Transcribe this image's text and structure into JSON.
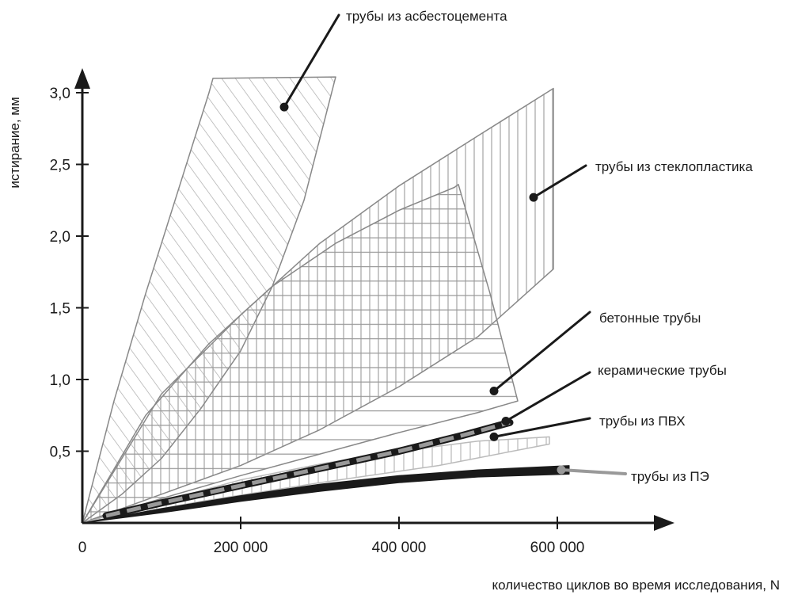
{
  "chart_data": {
    "type": "area",
    "title": "",
    "xlabel": "количество циклов во время исследования, N",
    "ylabel": "истирание, мм",
    "xlim": [
      0,
      740000
    ],
    "ylim": [
      0,
      3.3
    ],
    "x_ticks": [
      0,
      200000,
      400000,
      600000
    ],
    "x_tick_labels": [
      "0",
      "200 000",
      "400 000",
      "600 000"
    ],
    "y_ticks": [
      0.5,
      1.0,
      1.5,
      2.0,
      2.5,
      3.0
    ],
    "y_tick_labels": [
      "0,5",
      "1,0",
      "1,5",
      "2,0",
      "2,5",
      "3,0"
    ],
    "grid": false,
    "legend": "callouts",
    "series": [
      {
        "name": "трубы из асбестоцемента",
        "fill": "diagonal-hatch",
        "upper": [
          [
            0,
            0
          ],
          [
            40000,
            0.85
          ],
          [
            80000,
            1.6
          ],
          [
            120000,
            2.3
          ],
          [
            160000,
            3.0
          ],
          [
            165000,
            3.1
          ]
        ],
        "top": [
          [
            165000,
            3.1
          ],
          [
            320000,
            3.11
          ]
        ],
        "lower": [
          [
            0,
            0
          ],
          [
            50000,
            0.2
          ],
          [
            100000,
            0.45
          ],
          [
            150000,
            0.8
          ],
          [
            200000,
            1.2
          ],
          [
            240000,
            1.65
          ],
          [
            280000,
            2.25
          ],
          [
            320000,
            3.11
          ]
        ],
        "label_point": [
          255000,
          2.9
        ]
      },
      {
        "name": "трубы из стеклопластика",
        "fill": "vertical-hatch",
        "upper": [
          [
            0,
            0
          ],
          [
            50000,
            0.45
          ],
          [
            100000,
            0.9
          ],
          [
            200000,
            1.45
          ],
          [
            300000,
            1.95
          ],
          [
            400000,
            2.35
          ],
          [
            500000,
            2.7
          ],
          [
            595000,
            3.03
          ]
        ],
        "right": [
          [
            595000,
            3.03
          ],
          [
            595000,
            1.77
          ]
        ],
        "lower": [
          [
            0,
            0
          ],
          [
            100000,
            0.2
          ],
          [
            200000,
            0.4
          ],
          [
            300000,
            0.65
          ],
          [
            400000,
            0.95
          ],
          [
            500000,
            1.3
          ],
          [
            595000,
            1.77
          ]
        ],
        "label_point": [
          570000,
          2.27
        ]
      },
      {
        "name": "бетонные трубы",
        "fill": "horizontal-hatch",
        "upper": [
          [
            0,
            0
          ],
          [
            80000,
            0.75
          ],
          [
            160000,
            1.25
          ],
          [
            240000,
            1.65
          ],
          [
            320000,
            1.95
          ],
          [
            400000,
            2.18
          ],
          [
            470000,
            2.34
          ],
          [
            475000,
            2.36
          ]
        ],
        "right": [
          [
            475000,
            2.36
          ],
          [
            515000,
            1.6
          ],
          [
            550000,
            0.85
          ]
        ],
        "lower": [
          [
            0,
            0
          ],
          [
            100000,
            0.17
          ],
          [
            200000,
            0.33
          ],
          [
            300000,
            0.48
          ],
          [
            400000,
            0.63
          ],
          [
            500000,
            0.77
          ],
          [
            550000,
            0.85
          ]
        ],
        "label_point": [
          520000,
          0.92
        ]
      },
      {
        "name": "керамические трубы",
        "fill": "dashed-line",
        "points": [
          [
            30000,
            0.05
          ],
          [
            100000,
            0.14
          ],
          [
            200000,
            0.26
          ],
          [
            300000,
            0.38
          ],
          [
            400000,
            0.5
          ],
          [
            480000,
            0.61
          ],
          [
            540000,
            0.7
          ]
        ],
        "label_point": [
          535000,
          0.71
        ]
      },
      {
        "name": "трубы из ПВХ",
        "fill": "vertical-hatch-light",
        "upper": [
          [
            0,
            0
          ],
          [
            100000,
            0.15
          ],
          [
            200000,
            0.3
          ],
          [
            300000,
            0.41
          ],
          [
            400000,
            0.5
          ],
          [
            500000,
            0.57
          ],
          [
            590000,
            0.6
          ]
        ],
        "lower": [
          [
            0,
            0
          ],
          [
            150000,
            0.15
          ],
          [
            300000,
            0.28
          ],
          [
            450000,
            0.4
          ],
          [
            590000,
            0.55
          ]
        ],
        "label_point": [
          520000,
          0.6
        ]
      },
      {
        "name": "трубы из ПЭ",
        "fill": "solid-black",
        "upper": [
          [
            0,
            0
          ],
          [
            100000,
            0.1
          ],
          [
            200000,
            0.19
          ],
          [
            300000,
            0.27
          ],
          [
            400000,
            0.33
          ],
          [
            500000,
            0.37
          ],
          [
            615000,
            0.4
          ]
        ],
        "lower": [
          [
            0,
            0
          ],
          [
            100000,
            0.07
          ],
          [
            200000,
            0.15
          ],
          [
            300000,
            0.22
          ],
          [
            400000,
            0.28
          ],
          [
            500000,
            0.32
          ],
          [
            615000,
            0.34
          ]
        ],
        "label_point": [
          605000,
          0.37
        ]
      }
    ]
  }
}
